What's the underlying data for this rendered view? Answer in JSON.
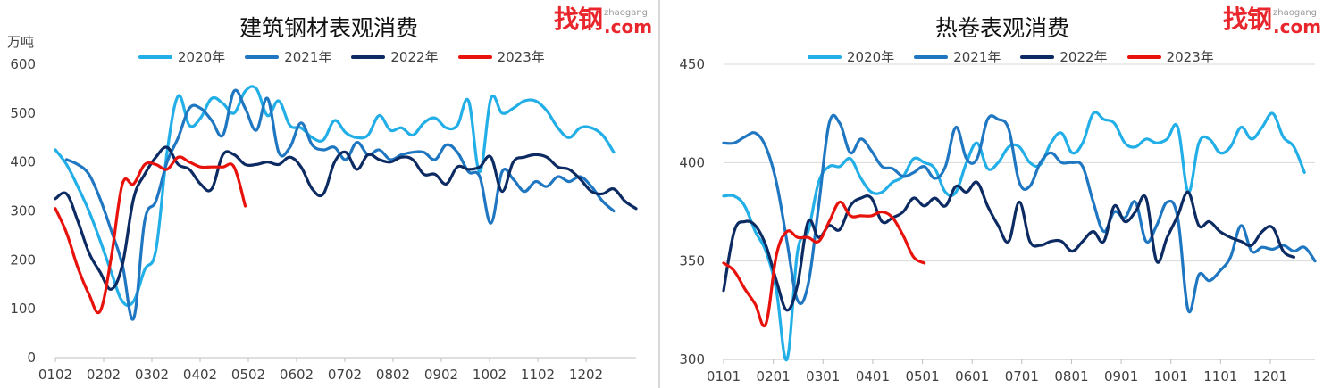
{
  "chart_data": [
    {
      "type": "line",
      "title": "建筑钢材表观消费",
      "ylabel": "万吨",
      "ylim": [
        0,
        600
      ],
      "yticks": [
        "0",
        "100",
        "200",
        "300",
        "400",
        "500",
        "600"
      ],
      "x_tick_labels": [
        "0102",
        "0202",
        "0302",
        "0402",
        "0502",
        "0602",
        "0702",
        "0802",
        "0902",
        "1002",
        "1102",
        "1202"
      ],
      "legend_position": "top",
      "grid": false,
      "series": [
        {
          "name": "2020年",
          "color": "#22aee6",
          "values": [
            425,
            395,
            350,
            300,
            240,
            175,
            115,
            115,
            180,
            220,
            420,
            535,
            475,
            490,
            530,
            520,
            500,
            545,
            550,
            495,
            525,
            475,
            470,
            450,
            445,
            485,
            460,
            450,
            455,
            495,
            465,
            470,
            455,
            480,
            490,
            470,
            475,
            525,
            380,
            530,
            500,
            510,
            525,
            525,
            505,
            470,
            450,
            470,
            470,
            455,
            420
          ]
        },
        {
          "name": "2021年",
          "color": "#1f77c2",
          "values": [
            null,
            405,
            395,
            375,
            325,
            260,
            190,
            80,
            280,
            320,
            400,
            450,
            510,
            510,
            485,
            455,
            545,
            510,
            465,
            530,
            420,
            430,
            480,
            435,
            425,
            430,
            405,
            440,
            415,
            425,
            405,
            415,
            420,
            420,
            405,
            435,
            420,
            380,
            370,
            275,
            380,
            365,
            340,
            360,
            350,
            370,
            360,
            370,
            350,
            320,
            300
          ]
        },
        {
          "name": "2022年",
          "color": "#0d2b63",
          "values": [
            325,
            335,
            280,
            215,
            175,
            140,
            190,
            325,
            375,
            410,
            430,
            395,
            385,
            355,
            345,
            415,
            415,
            395,
            395,
            400,
            395,
            410,
            390,
            345,
            335,
            400,
            420,
            385,
            415,
            405,
            400,
            410,
            405,
            375,
            375,
            355,
            390,
            385,
            390,
            410,
            340,
            400,
            410,
            415,
            410,
            390,
            385,
            365,
            340,
            335,
            345,
            320,
            305
          ]
        },
        {
          "name": "2023年",
          "color": "#e8120c",
          "values": [
            305,
            255,
            185,
            130,
            95,
            205,
            355,
            355,
            395,
            395,
            385,
            410,
            400,
            390,
            390,
            390,
            390,
            310
          ]
        }
      ]
    },
    {
      "type": "line",
      "title": "热卷表观消费",
      "ylim": [
        300,
        450
      ],
      "yticks": [
        "300",
        "350",
        "400",
        "450"
      ],
      "x_tick_labels": [
        "0101",
        "0201",
        "0301",
        "0401",
        "0501",
        "0601",
        "0701",
        "0801",
        "0901",
        "1001",
        "1101",
        "1201"
      ],
      "legend_position": "top",
      "grid": true,
      "series": [
        {
          "name": "2020年",
          "color": "#22aee6",
          "values": [
            383,
            383,
            378,
            365,
            355,
            335,
            300,
            355,
            365,
            390,
            398,
            398,
            402,
            392,
            385,
            385,
            390,
            393,
            402,
            400,
            397,
            385,
            385,
            400,
            410,
            397,
            400,
            408,
            408,
            400,
            399,
            410,
            415,
            405,
            410,
            425,
            422,
            420,
            410,
            408,
            412,
            410,
            412,
            418,
            385,
            410,
            412,
            405,
            408,
            418,
            412,
            418,
            425,
            413,
            408,
            395
          ]
        },
        {
          "name": "2021年",
          "color": "#1f77c2",
          "values": [
            410,
            410,
            413,
            415,
            408,
            390,
            360,
            330,
            338,
            378,
            420,
            420,
            405,
            412,
            406,
            398,
            397,
            393,
            395,
            398,
            392,
            398,
            418,
            402,
            402,
            422,
            422,
            417,
            390,
            388,
            400,
            405,
            400,
            400,
            398,
            380,
            365,
            375,
            372,
            380,
            360,
            368,
            380,
            372,
            325,
            343,
            340,
            345,
            352,
            368,
            355,
            357,
            356,
            358,
            355,
            357,
            350
          ]
        },
        {
          "name": "2022年",
          "color": "#0d2b63",
          "values": [
            335,
            365,
            370,
            368,
            358,
            340,
            325,
            338,
            370,
            362,
            368,
            366,
            378,
            382,
            382,
            370,
            372,
            375,
            382,
            378,
            382,
            378,
            388,
            385,
            390,
            378,
            368,
            360,
            380,
            360,
            358,
            360,
            360,
            355,
            360,
            365,
            360,
            378,
            370,
            375,
            382,
            350,
            362,
            373,
            385,
            368,
            370,
            365,
            362,
            360,
            358,
            365,
            367,
            355,
            352
          ]
        },
        {
          "name": "2023年",
          "color": "#e8120c",
          "values": [
            349,
            345,
            336,
            328,
            318,
            353,
            365,
            362,
            362,
            360,
            370,
            380,
            373,
            373,
            373,
            375,
            372,
            363,
            352,
            349
          ]
        }
      ]
    }
  ],
  "logo": {
    "main": "找钢",
    "small": "zhaogang",
    "com": ".com"
  }
}
